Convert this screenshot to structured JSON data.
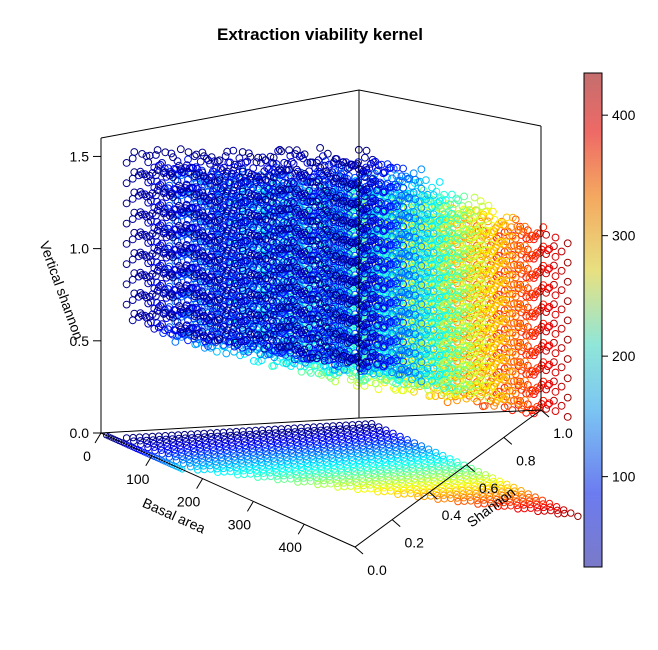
{
  "chart_data": {
    "type": "scatter",
    "title": "Extraction viability kernel",
    "xlabel": "Basal area",
    "ylabel": "Shannon",
    "zlabel": "Vertical shannon",
    "xlim": [
      0,
      500
    ],
    "ylim": [
      0,
      1
    ],
    "zlim": [
      0,
      1.6
    ],
    "x_ticks": [
      0,
      100,
      200,
      300,
      400
    ],
    "y_ticks": [
      0.0,
      0.2,
      0.4,
      0.6,
      0.8,
      1.0
    ],
    "z_ticks": [
      0.0,
      0.5,
      1.0,
      1.5
    ],
    "x_tick_labels": [
      "0",
      "100",
      "200",
      "300",
      "400"
    ],
    "y_tick_labels": [
      "0.0",
      "0.2",
      "0.4",
      "0.6",
      "0.8",
      "1.0"
    ],
    "z_tick_labels": [
      "0.0",
      "0.5",
      "1.0",
      "1.5"
    ],
    "color_variable": "Basal area",
    "colorbar": {
      "range": [
        25,
        435
      ],
      "ticks": [
        100,
        200,
        300,
        400
      ],
      "tick_labels": [
        "100",
        "200",
        "300",
        "400"
      ],
      "palette": [
        "#00007F",
        "#0000FF",
        "#007FFF",
        "#00FFFF",
        "#7FFF7F",
        "#FFFF00",
        "#FF7F00",
        "#FF0000",
        "#7F0000"
      ]
    },
    "marker": "open circle",
    "box": true,
    "grid": false,
    "kernel_surface": {
      "shannon_range": [
        0.05,
        1.0
      ],
      "basal_area_range": [
        25,
        435
      ],
      "vertical_shannon_range": [
        0.3,
        1.6
      ]
    },
    "floor_projection": {
      "shannon_range": [
        0.05,
        1.0
      ],
      "basal_area_range": [
        25,
        435
      ],
      "vertical_shannon": 0
    },
    "side_wall_projection": {
      "shannon": 0,
      "basal_area_range": [
        0,
        160
      ],
      "vertical_shannon": 0
    }
  }
}
